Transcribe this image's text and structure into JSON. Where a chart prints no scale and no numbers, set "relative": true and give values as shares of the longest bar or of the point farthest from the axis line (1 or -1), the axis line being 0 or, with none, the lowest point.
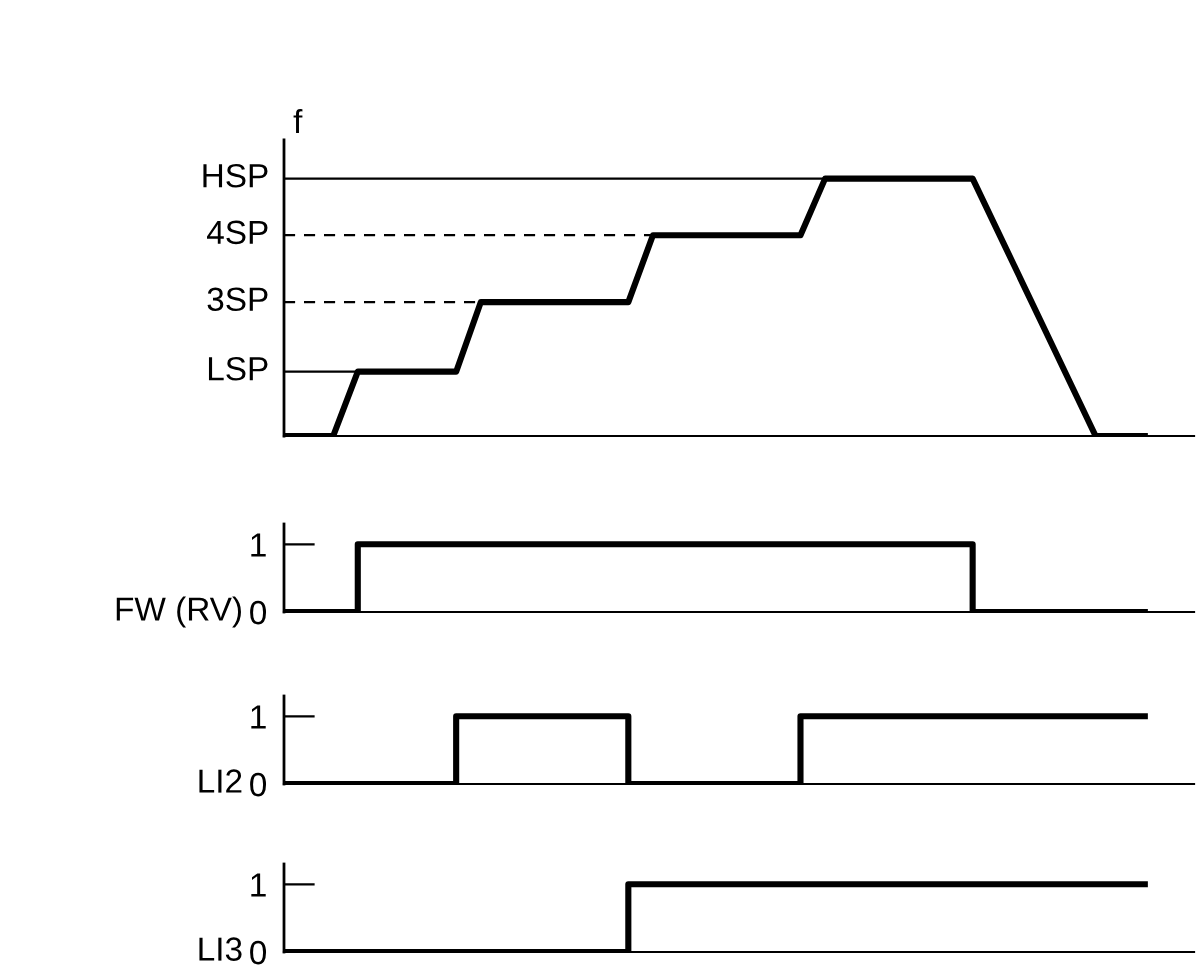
{
  "chart_data": [
    {
      "type": "line",
      "ylabel": "f",
      "categories": [
        null,
        null,
        null,
        null,
        null,
        null,
        null,
        null,
        null,
        null,
        null,
        null,
        null,
        null,
        null,
        null,
        null,
        null,
        null,
        null,
        null,
        null,
        null,
        null,
        null,
        null,
        null,
        null,
        null,
        null,
        null,
        null,
        null,
        null,
        null,
        null
      ],
      "series": [
        {
          "color": "#000000",
          "values": [
            0,
            0,
            0,
            0.25,
            0.25,
            0.25,
            0.25,
            0.25,
            0.52,
            0.52,
            0.52,
            0.52,
            0.52,
            0.52,
            0.52,
            0.78,
            0.78,
            0.78,
            0.78,
            0.78,
            0.78,
            0.78,
            1,
            1,
            1,
            1,
            1,
            1,
            1,
            0.8,
            0.6,
            0.4,
            0.2,
            0,
            0,
            0
          ]
        }
      ],
      "relative": true,
      "ref_lines": [
        {
          "axis": "y",
          "value": 0.25,
          "label": "LSP",
          "line_style": "solid"
        },
        {
          "axis": "y",
          "value": 0.52,
          "label": "3SP",
          "line_style": "dashed"
        },
        {
          "axis": "y",
          "value": 0.78,
          "label": "4SP",
          "line_style": "dashed"
        },
        {
          "axis": "y",
          "value": 1,
          "label": "HSP",
          "line_style": "solid"
        }
      ],
      "tick_labels": false,
      "grid": false,
      "legend": false
    },
    {
      "type": "step",
      "ylabel": "FW (RV)",
      "categories": [
        null,
        null,
        null,
        null,
        null,
        null,
        null,
        null,
        null,
        null,
        null,
        null,
        null,
        null,
        null,
        null,
        null,
        null,
        null,
        null,
        null,
        null,
        null,
        null,
        null,
        null,
        null,
        null,
        null,
        null,
        null,
        null,
        null,
        null,
        null,
        null
      ],
      "series": [
        {
          "color": "#000000",
          "values": [
            0,
            0,
            0,
            1,
            1,
            1,
            1,
            1,
            1,
            1,
            1,
            1,
            1,
            1,
            1,
            1,
            1,
            1,
            1,
            1,
            1,
            1,
            1,
            1,
            1,
            1,
            1,
            1,
            0,
            0,
            0,
            0,
            0,
            0,
            0,
            0
          ]
        }
      ],
      "ylim": [
        0,
        1.3
      ],
      "yticks": [
        0,
        1
      ],
      "tick_labels": "y",
      "grid": false,
      "legend": false
    },
    {
      "type": "step",
      "ylabel": "LI2",
      "categories": [
        null,
        null,
        null,
        null,
        null,
        null,
        null,
        null,
        null,
        null,
        null,
        null,
        null,
        null,
        null,
        null,
        null,
        null,
        null,
        null,
        null,
        null,
        null,
        null,
        null,
        null,
        null,
        null,
        null,
        null,
        null,
        null,
        null,
        null,
        null,
        null
      ],
      "series": [
        {
          "color": "#000000",
          "values": [
            0,
            0,
            0,
            0,
            0,
            0,
            0,
            1,
            1,
            1,
            1,
            1,
            1,
            1,
            0,
            0,
            0,
            0,
            0,
            0,
            0,
            1,
            1,
            1,
            1,
            1,
            1,
            1,
            1,
            1,
            1,
            1,
            1,
            1,
            1,
            1
          ]
        }
      ],
      "ylim": [
        0,
        1.3
      ],
      "yticks": [
        0,
        1
      ],
      "tick_labels": "y",
      "grid": false,
      "legend": false
    },
    {
      "type": "step",
      "ylabel": "LI3",
      "categories": [
        null,
        null,
        null,
        null,
        null,
        null,
        null,
        null,
        null,
        null,
        null,
        null,
        null,
        null,
        null,
        null,
        null,
        null,
        null,
        null,
        null,
        null,
        null,
        null,
        null,
        null,
        null,
        null,
        null,
        null,
        null,
        null,
        null,
        null,
        null,
        null
      ],
      "series": [
        {
          "color": "#000000",
          "values": [
            0,
            0,
            0,
            0,
            0,
            0,
            0,
            0,
            0,
            0,
            0,
            0,
            0,
            0,
            1,
            1,
            1,
            1,
            1,
            1,
            1,
            1,
            1,
            1,
            1,
            1,
            1,
            1,
            1,
            1,
            1,
            1,
            1,
            1,
            1,
            1
          ]
        }
      ],
      "ylim": [
        0,
        1.3
      ],
      "yticks": [
        0,
        1
      ],
      "tick_labels": "y",
      "grid": false,
      "legend": false
    }
  ]
}
